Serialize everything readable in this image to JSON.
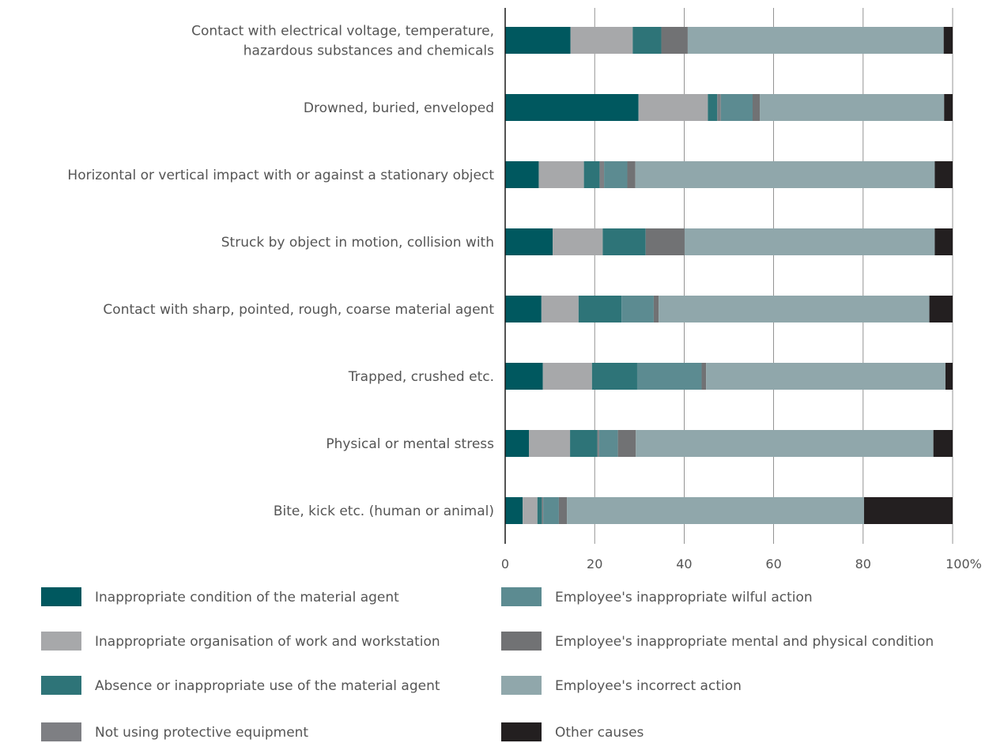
{
  "chart_data": {
    "type": "bar",
    "orientation": "horizontal",
    "stacked": true,
    "categories": [
      [
        "Contact with electrical voltage, temperature,",
        "hazardous substances and chemicals"
      ],
      [
        "Drowned, buried, enveloped"
      ],
      [
        "Horizontal or vertical impact with or against a stationary object"
      ],
      [
        "Struck by object in motion, collision with"
      ],
      [
        "Contact with sharp, pointed, rough, coarse material agent"
      ],
      [
        "Trapped, crushed etc."
      ],
      [
        "Physical or mental stress"
      ],
      [
        "Bite, kick etc. (human or animal)"
      ]
    ],
    "series": [
      {
        "name": "Inappropriate condition of the material agent",
        "color": "#00585f",
        "values": [
          14.6,
          29.8,
          7.5,
          10.6,
          8.1,
          8.4,
          5.3,
          3.9
        ]
      },
      {
        "name": "Inappropriate organisation of work and workstation",
        "color": "#a7a8aa",
        "values": [
          13.9,
          15.5,
          10.1,
          11.2,
          8.3,
          11.0,
          9.2,
          3.3
        ]
      },
      {
        "name": "Absence or inappropriate use of the material agent",
        "color": "#2e7478",
        "values": [
          6.4,
          2.1,
          3.5,
          9.6,
          9.6,
          10.1,
          6.1,
          1.0
        ]
      },
      {
        "name": "Not using protective equipment",
        "color": "#7e7f83",
        "values": [
          0.0,
          0.8,
          1.0,
          0.0,
          0.0,
          0.0,
          0.4,
          0.3
        ]
      },
      {
        "name": "Employee's inappropriate wilful action",
        "color": "#5c8b91",
        "values": [
          0.0,
          7.1,
          5.2,
          0.0,
          7.2,
          14.4,
          4.2,
          3.5
        ]
      },
      {
        "name": "Employee's inappropriate mental and physical condition",
        "color": "#717274",
        "values": [
          5.9,
          1.6,
          1.8,
          8.7,
          1.1,
          1.0,
          4.0,
          1.8
        ]
      },
      {
        "name": "Employee's incorrect action",
        "color": "#90a7ab",
        "values": [
          57.2,
          41.2,
          66.9,
          55.9,
          60.5,
          53.5,
          66.5,
          66.4
        ]
      },
      {
        "name": "Other causes",
        "color": "#231f20",
        "values": [
          2.0,
          1.9,
          4.0,
          4.0,
          5.2,
          1.6,
          4.3,
          19.8
        ]
      }
    ],
    "xlim": [
      0,
      100
    ],
    "xticks": [
      "0",
      "20",
      "40",
      "60",
      "80",
      "100%"
    ],
    "grid": true,
    "legend_position": "bottom"
  }
}
